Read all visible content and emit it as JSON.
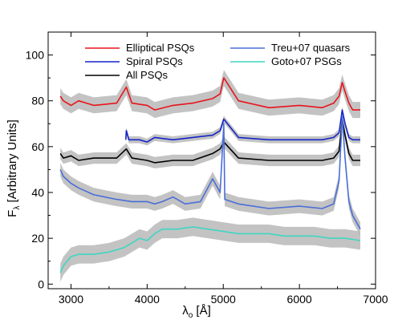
{
  "chart_data": {
    "type": "line",
    "title": "",
    "xlabel_main": "λ",
    "xlabel_sub": "o",
    "xlabel_unit": " [Å]",
    "ylabel_main": "F",
    "ylabel_sub": "λ",
    "ylabel_unit": " [Arbitrary Units]",
    "xlim": [
      2700,
      7000
    ],
    "ylim": [
      -2,
      110
    ],
    "x_ticks": [
      3000,
      4000,
      5000,
      6000,
      7000
    ],
    "x_tick_labels": [
      "3000",
      "4000",
      "5000",
      "6000",
      "7000"
    ],
    "y_ticks": [
      0,
      20,
      40,
      60,
      80,
      100
    ],
    "y_tick_labels": [
      "0",
      "20",
      "40",
      "60",
      "80",
      "100"
    ],
    "grid": false,
    "legend_position": "top",
    "legend": [
      {
        "name": "Elliptical PSQs",
        "color": "#e8141c"
      },
      {
        "name": "Spiral PSQs",
        "color": "#1424c8"
      },
      {
        "name": "All PSQs",
        "color": "#000000"
      },
      {
        "name": "Treu+07 quasars",
        "color": "#4a6ed8"
      },
      {
        "name": "Goto+07 PSGs",
        "color": "#3fd6c2"
      }
    ],
    "band_color": "#b8b8b8",
    "series": [
      {
        "name": "Elliptical PSQs",
        "color": "#e8141c",
        "x": [
          2860,
          2900,
          3000,
          3100,
          3300,
          3600,
          3727,
          3800,
          4000,
          4100,
          4340,
          4600,
          4861,
          4959,
          5007,
          5200,
          5600,
          6000,
          6300,
          6450,
          6520,
          6563,
          6600,
          6650,
          6700,
          6800
        ],
        "y": [
          82,
          80,
          78,
          80,
          78,
          79,
          86,
          79,
          78,
          76,
          78,
          79,
          81,
          83,
          90,
          80,
          77,
          78,
          77,
          79,
          82,
          88,
          84,
          79,
          76,
          76
        ],
        "band": 3.5
      },
      {
        "name": "Spiral PSQs",
        "color": "#1424c8",
        "x": [
          3720,
          3727,
          3760,
          3900,
          4000,
          4100,
          4340,
          4600,
          4861,
          4959,
          5007,
          5200,
          5600,
          6000,
          6300,
          6450,
          6520,
          6563,
          6600,
          6650,
          6700,
          6800
        ],
        "y": [
          63,
          67,
          63,
          63,
          62,
          64,
          63,
          64,
          65,
          67,
          72,
          64,
          63,
          63,
          63,
          64,
          66,
          76,
          70,
          64,
          63,
          63
        ],
        "band": 1.5
      },
      {
        "name": "All PSQs",
        "color": "#000000",
        "x": [
          2860,
          2900,
          3000,
          3100,
          3300,
          3600,
          3727,
          3800,
          4000,
          4100,
          4340,
          4600,
          4861,
          4959,
          5007,
          5200,
          5600,
          6000,
          6300,
          6450,
          6520,
          6563,
          6600,
          6650,
          6700,
          6800
        ],
        "y": [
          57,
          55,
          56,
          54,
          55,
          55,
          59,
          55,
          54,
          53,
          54,
          54,
          57,
          59,
          62,
          55,
          54,
          54,
          54,
          55,
          58,
          72,
          65,
          57,
          54,
          54
        ],
        "band": 2.5
      },
      {
        "name": "Treu+07 quasars",
        "color": "#4a6ed8",
        "x": [
          2860,
          2900,
          3000,
          3100,
          3300,
          3600,
          3800,
          4000,
          4100,
          4200,
          4340,
          4500,
          4700,
          4861,
          4959,
          5007,
          5020,
          5200,
          5600,
          6000,
          6300,
          6450,
          6520,
          6563,
          6600,
          6650,
          6700,
          6800
        ],
        "y": [
          50,
          47,
          44,
          42,
          39,
          37,
          36,
          36,
          35,
          36,
          38,
          35,
          36,
          46,
          40,
          70,
          37,
          35,
          33,
          34,
          33,
          35,
          45,
          73,
          55,
          36,
          30,
          24
        ],
        "band": 3
      },
      {
        "name": "Goto+07 PSGs",
        "color": "#3fd6c2",
        "x": [
          2860,
          2900,
          3000,
          3100,
          3300,
          3500,
          3700,
          3800,
          3900,
          4000,
          4100,
          4200,
          4400,
          4600,
          4800,
          5000,
          5200,
          5400,
          5600,
          5800,
          6000,
          6200,
          6400,
          6600,
          6800
        ],
        "y": [
          5,
          8,
          12,
          13,
          13,
          14,
          16,
          18,
          20,
          19,
          22,
          24,
          24,
          25,
          24,
          23,
          22,
          22,
          22,
          21,
          21,
          21,
          20,
          20,
          19
        ],
        "band": 4
      }
    ]
  }
}
